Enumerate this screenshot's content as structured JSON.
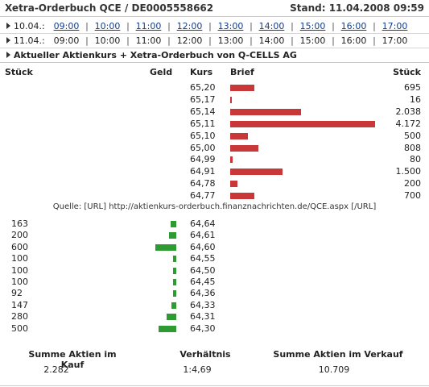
{
  "header": {
    "title": "Xetra-Orderbuch QCE / DE0005558662",
    "stand": "Stand: 11.04.2008 09:59"
  },
  "day_rows": [
    {
      "date": "10.04.:",
      "linked": true,
      "times": [
        "09:00",
        "10:00",
        "11:00",
        "12:00",
        "13:00",
        "14:00",
        "15:00",
        "16:00",
        "17:00"
      ]
    },
    {
      "date": "11.04.:",
      "linked": false,
      "times": [
        "09:00",
        "10:00",
        "11:00",
        "12:00",
        "13:00",
        "14:00",
        "15:00",
        "16:00",
        "17:00"
      ]
    }
  ],
  "section_title": "Aktueller Aktienkurs + Xetra-Orderbuch von Q-CELLS AG",
  "columns": {
    "stueck_left": "Stück",
    "geld": "Geld",
    "kurs": "Kurs",
    "brief": "Brief",
    "stueck_right": "Stück"
  },
  "ask_rows": [
    {
      "kurs": "65,20",
      "stueck": "695"
    },
    {
      "kurs": "65,17",
      "stueck": "16"
    },
    {
      "kurs": "65,14",
      "stueck": "2.038"
    },
    {
      "kurs": "65,11",
      "stueck": "4.172"
    },
    {
      "kurs": "65,10",
      "stueck": "500"
    },
    {
      "kurs": "65,00",
      "stueck": "808"
    },
    {
      "kurs": "64,99",
      "stueck": "80"
    },
    {
      "kurs": "64,91",
      "stueck": "1.500"
    },
    {
      "kurs": "64,78",
      "stueck": "200"
    },
    {
      "kurs": "64,77",
      "stueck": "700"
    }
  ],
  "source": "Quelle: [URL] http://aktienkurs-orderbuch.finanznachrichten.de/QCE.aspx [/URL]",
  "bid_rows": [
    {
      "stueck": "163",
      "kurs": "64,64"
    },
    {
      "stueck": "200",
      "kurs": "64,61"
    },
    {
      "stueck": "600",
      "kurs": "64,60"
    },
    {
      "stueck": "100",
      "kurs": "64,55"
    },
    {
      "stueck": "100",
      "kurs": "64,50"
    },
    {
      "stueck": "100",
      "kurs": "64,45"
    },
    {
      "stueck": "92",
      "kurs": "64,36"
    },
    {
      "stueck": "147",
      "kurs": "64,33"
    },
    {
      "stueck": "280",
      "kurs": "64,31"
    },
    {
      "stueck": "500",
      "kurs": "64,30"
    }
  ],
  "summary": {
    "kauf_label": "Summe Aktien im Kauf",
    "kauf_value": "2.282",
    "verh_label": "Verhältnis",
    "verh_value": "1:4,69",
    "verkauf_label": "Summe Aktien im Verkauf",
    "verkauf_value": "10.709"
  },
  "chart_data": [
    {
      "type": "bar",
      "series": [
        {
          "name": "Brief",
          "values": [
            695,
            16,
            2038,
            4172,
            500,
            808,
            80,
            1500,
            200,
            700
          ]
        }
      ],
      "categories": [
        "65,20",
        "65,17",
        "65,14",
        "65,11",
        "65,10",
        "65,00",
        "64,99",
        "64,91",
        "64,78",
        "64,77"
      ],
      "color": "#c93838"
    },
    {
      "type": "bar",
      "series": [
        {
          "name": "Geld",
          "values": [
            163,
            200,
            600,
            100,
            100,
            100,
            92,
            147,
            280,
            500
          ]
        }
      ],
      "categories": [
        "64,64",
        "64,61",
        "64,60",
        "64,55",
        "64,50",
        "64,45",
        "64,36",
        "64,33",
        "64,31",
        "64,30"
      ],
      "color": "#2e9a32"
    }
  ]
}
